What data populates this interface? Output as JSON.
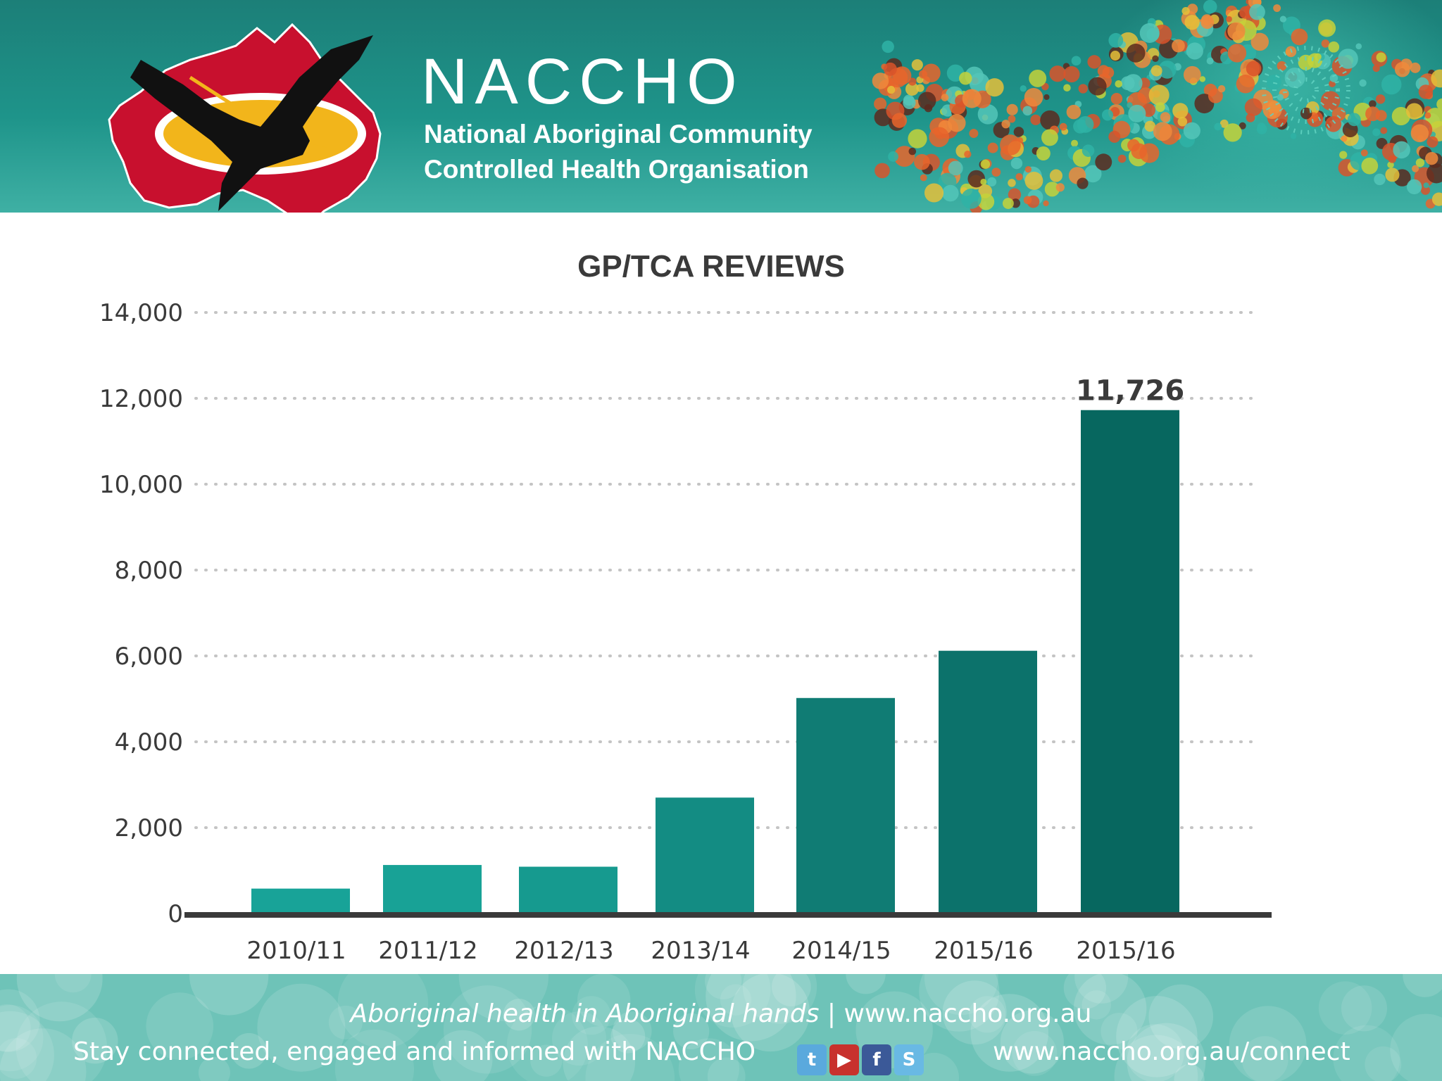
{
  "header": {
    "org_name": "NACCHO",
    "org_full_line1": "National Aboriginal Community",
    "org_full_line2": "Controlled Health Organisation"
  },
  "chart_data": {
    "type": "bar",
    "title": "GP/TCA REVIEWS",
    "xlabel": "",
    "ylabel": "",
    "ylim": [
      0,
      14000
    ],
    "yticks": [
      0,
      2000,
      4000,
      6000,
      8000,
      10000,
      12000,
      14000
    ],
    "ytick_labels": [
      "0",
      "2,000",
      "4,000",
      "6,000",
      "8,000",
      "10,000",
      "12,000",
      "14,000"
    ],
    "grid": "dotted-horizontal",
    "legend": "none",
    "categories": [
      "2010/11",
      "2011/12",
      "2012/13",
      "2013/14",
      "2014/15",
      "2015/16",
      "2015/16"
    ],
    "values": [
      580,
      1130,
      1090,
      2700,
      5020,
      6120,
      11726
    ],
    "annotations": [
      {
        "category_index": 6,
        "text": "11,726"
      }
    ],
    "colors": {
      "bars": [
        "#18a398",
        "#18a296",
        "#169a8f",
        "#138c83",
        "#107c74",
        "#0c726b",
        "#07675f"
      ],
      "axis": "#3a3a3a",
      "grid": "#c4c4c4",
      "text": "#3a3a3a"
    }
  },
  "footer": {
    "slogan": "Aboriginal health in Aboriginal hands",
    "separator": "|",
    "website": "www.naccho.org.au",
    "stay_connected": "Stay connected, engaged and informed with NACCHO",
    "connect_url": "www.naccho.org.au/connect",
    "social_icons": [
      {
        "name": "twitter-icon",
        "glyph": "t"
      },
      {
        "name": "youtube-icon",
        "glyph": "▶"
      },
      {
        "name": "facebook-icon",
        "glyph": "f"
      },
      {
        "name": "skype-icon",
        "glyph": "S"
      }
    ]
  }
}
